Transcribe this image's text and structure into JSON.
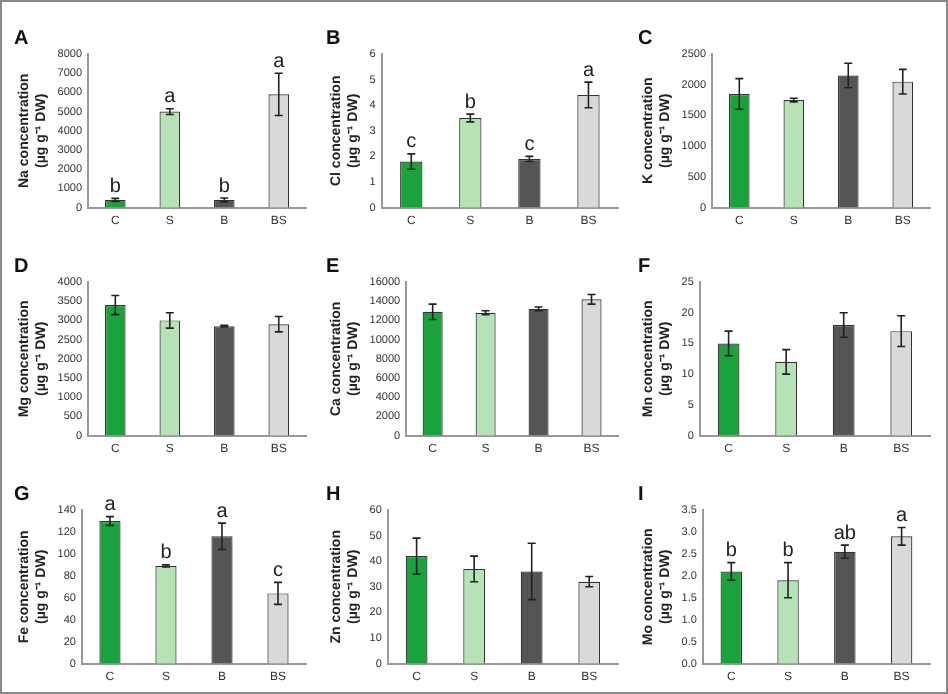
{
  "chart_data": [
    {
      "type": "bar",
      "title": "A",
      "ylabel": "Na concentration (µg g⁻¹ DW)",
      "categories": [
        "C",
        "S",
        "B",
        "BS"
      ],
      "values": [
        400,
        5000,
        400,
        5900
      ],
      "errors": [
        80,
        150,
        100,
        1100
      ],
      "colors": [
        "#1aa33c",
        "#b5e3b5",
        "#555555",
        "#d9d9d9"
      ],
      "ylim": [
        0,
        8000
      ],
      "yticks": [
        0,
        1000,
        2000,
        3000,
        4000,
        5000,
        6000,
        7000,
        8000
      ],
      "grid": false,
      "annotations": [
        {
          "text": "b",
          "x": "C",
          "y": 480
        },
        {
          "text": "a",
          "x": "S",
          "y": 5150
        },
        {
          "text": "b",
          "x": "B",
          "y": 500
        },
        {
          "text": "a",
          "x": "BS",
          "y": 7000
        }
      ]
    },
    {
      "type": "bar",
      "title": "B",
      "ylabel": "Cl concentration (µg g⁻¹ DW)",
      "categories": [
        "C",
        "S",
        "B",
        "BS"
      ],
      "values": [
        1.8,
        3.5,
        1.9,
        4.4
      ],
      "errors": [
        0.3,
        0.15,
        0.1,
        0.5
      ],
      "colors": [
        "#1aa33c",
        "#b5e3b5",
        "#555555",
        "#d9d9d9"
      ],
      "ylim": [
        0,
        6
      ],
      "yticks": [
        0,
        1,
        2,
        3,
        4,
        5,
        6
      ],
      "grid": false,
      "annotations": [
        {
          "text": "c",
          "x": "C",
          "y": 2.1
        },
        {
          "text": "b",
          "x": "S",
          "y": 3.65
        },
        {
          "text": "c",
          "x": "B",
          "y": 2
        },
        {
          "text": "a",
          "x": "BS",
          "y": 4.9
        }
      ]
    },
    {
      "type": "bar",
      "title": "C",
      "ylabel": "K concentration (µg g⁻¹ DW)",
      "categories": [
        "C",
        "S",
        "B",
        "BS"
      ],
      "values": [
        1850,
        1750,
        2150,
        2050
      ],
      "errors": [
        250,
        30,
        200,
        200
      ],
      "colors": [
        "#1aa33c",
        "#b5e3b5",
        "#555555",
        "#d9d9d9"
      ],
      "ylim": [
        0,
        2500
      ],
      "yticks": [
        0,
        500,
        1000,
        1500,
        2000,
        2500
      ],
      "grid": false
    },
    {
      "type": "bar",
      "title": "D",
      "ylabel": "Mg concentration (µg g⁻¹ DW)",
      "categories": [
        "C",
        "S",
        "B",
        "BS"
      ],
      "values": [
        3400,
        3000,
        2850,
        2900
      ],
      "errors": [
        250,
        200,
        20,
        200
      ],
      "colors": [
        "#1aa33c",
        "#b5e3b5",
        "#555555",
        "#d9d9d9"
      ],
      "ylim": [
        0,
        4000
      ],
      "yticks": [
        0,
        500,
        1000,
        1500,
        2000,
        2500,
        3000,
        3500,
        4000
      ],
      "grid": false
    },
    {
      "type": "bar",
      "title": "E",
      "ylabel": "Ca concentration (µg g⁻¹ DW)",
      "categories": [
        "C",
        "S",
        "B",
        "BS"
      ],
      "values": [
        12900,
        12800,
        13200,
        14200
      ],
      "errors": [
        800,
        200,
        200,
        500
      ],
      "colors": [
        "#1aa33c",
        "#b5e3b5",
        "#555555",
        "#d9d9d9"
      ],
      "ylim": [
        0,
        16000
      ],
      "yticks": [
        0,
        2000,
        4000,
        6000,
        8000,
        10000,
        12000,
        14000,
        16000
      ],
      "grid": false
    },
    {
      "type": "bar",
      "title": "F",
      "ylabel": "Mn concentration (µg g⁻¹ DW)",
      "categories": [
        "C",
        "S",
        "B",
        "BS"
      ],
      "values": [
        15,
        12,
        18,
        17
      ],
      "errors": [
        2,
        2,
        2,
        2.5
      ],
      "colors": [
        "#1aa33c",
        "#b5e3b5",
        "#555555",
        "#d9d9d9"
      ],
      "ylim": [
        0,
        25
      ],
      "yticks": [
        0,
        5,
        10,
        15,
        20,
        25
      ],
      "grid": false
    },
    {
      "type": "bar",
      "title": "G",
      "ylabel": "Fe concentration (µg g⁻¹ DW)",
      "categories": [
        "C",
        "S",
        "B",
        "BS"
      ],
      "values": [
        130,
        89,
        116,
        64
      ],
      "errors": [
        4,
        1,
        12,
        10
      ],
      "colors": [
        "#1aa33c",
        "#b5e3b5",
        "#555555",
        "#d9d9d9"
      ],
      "ylim": [
        0,
        140
      ],
      "yticks": [
        0,
        20,
        40,
        60,
        80,
        100,
        120,
        140
      ],
      "grid": false,
      "annotations": [
        {
          "text": "a",
          "x": "C",
          "y": 134
        },
        {
          "text": "b",
          "x": "S",
          "y": 90
        },
        {
          "text": "a",
          "x": "B",
          "y": 128
        },
        {
          "text": "c",
          "x": "BS",
          "y": 74
        }
      ]
    },
    {
      "type": "bar",
      "title": "H",
      "ylabel": "Zn concentration (µg g⁻¹ DW)",
      "categories": [
        "C",
        "S",
        "B",
        "BS"
      ],
      "values": [
        42,
        37,
        36,
        32
      ],
      "errors": [
        7,
        5,
        11,
        2
      ],
      "colors": [
        "#1aa33c",
        "#b5e3b5",
        "#555555",
        "#d9d9d9"
      ],
      "ylim": [
        0,
        60
      ],
      "yticks": [
        0,
        10,
        20,
        30,
        40,
        50,
        60
      ],
      "grid": false
    },
    {
      "type": "bar",
      "title": "I",
      "ylabel": "Mo concentration (µg g⁻¹ DW)",
      "categories": [
        "C",
        "S",
        "B",
        "BS"
      ],
      "values": [
        2.1,
        1.9,
        2.55,
        2.9
      ],
      "errors": [
        0.2,
        0.4,
        0.15,
        0.2
      ],
      "colors": [
        "#1aa33c",
        "#b5e3b5",
        "#555555",
        "#d9d9d9"
      ],
      "ylim": [
        0,
        3.5
      ],
      "yticks": [
        {
          "value": 0,
          "label": "0.0"
        },
        {
          "value": 0.5,
          "label": "0.5"
        },
        {
          "value": 1,
          "label": "1.0"
        },
        {
          "value": 1.5,
          "label": "1.5"
        },
        {
          "value": 2,
          "label": "2.0"
        },
        {
          "value": 2.5,
          "label": "2.5"
        },
        {
          "value": 3,
          "label": "3.0"
        },
        {
          "value": 3.5,
          "label": "3.5"
        }
      ],
      "grid": false,
      "annotations": [
        {
          "text": "b",
          "x": "C",
          "y": 2.3
        },
        {
          "text": "b",
          "x": "S",
          "y": 2.3
        },
        {
          "text": "ab",
          "x": "B",
          "y": 2.7
        },
        {
          "text": "a",
          "x": "BS",
          "y": 3.1
        }
      ]
    }
  ]
}
